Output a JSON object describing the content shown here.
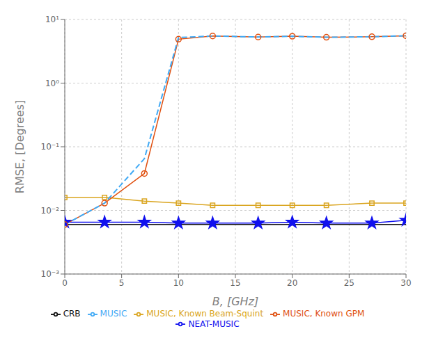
{
  "chart_data": {
    "type": "line",
    "x_label": "B, [GHz]",
    "y_label": "RMSE, [Degrees]",
    "log": "y",
    "grid": true,
    "legend": "bottom",
    "xlim": [
      0,
      30
    ],
    "xticks": [
      0,
      5,
      10,
      15,
      20,
      25,
      30
    ],
    "ylim": [
      0.001,
      10
    ],
    "yticks": [
      {
        "value": 0.001,
        "label": "10⁻³"
      },
      {
        "value": 0.01,
        "label": "10⁻²"
      },
      {
        "value": 0.1,
        "label": "10⁻¹"
      },
      {
        "value": 1,
        "label": "10⁰"
      },
      {
        "value": 10,
        "label": "10¹"
      }
    ],
    "series": [
      {
        "name": "CRB",
        "color": "#101010",
        "line_style": "solid",
        "marker": "none",
        "x": [
          0,
          30
        ],
        "values": [
          0.006,
          0.006
        ]
      },
      {
        "name": "NEAT-MUSIC",
        "color": "#1010EE",
        "line_style": "solid",
        "marker": "star",
        "x": [
          0,
          3.5,
          7,
          10,
          13,
          17,
          20,
          23,
          27,
          30
        ],
        "values": [
          0.0065,
          0.0065,
          0.0065,
          0.0063,
          0.0063,
          0.0063,
          0.0065,
          0.0063,
          0.0063,
          0.007
        ]
      },
      {
        "name": "MUSIC, Known Beam-Squint",
        "color": "#DAA520",
        "line_style": "solid",
        "marker": "square",
        "x": [
          0,
          3.5,
          7,
          10,
          13,
          17,
          20,
          23,
          27,
          30
        ],
        "values": [
          0.016,
          0.016,
          0.014,
          0.013,
          0.012,
          0.012,
          0.012,
          0.012,
          0.013,
          0.013
        ]
      },
      {
        "name": "MUSIC, Known GPM",
        "color": "#E05010",
        "line_style": "solid",
        "marker": "circle",
        "x": [
          0,
          3.5,
          7,
          10,
          13,
          17,
          20,
          23,
          27,
          30
        ],
        "values": [
          0.006,
          0.013,
          0.038,
          4.9,
          5.5,
          5.3,
          5.45,
          5.25,
          5.35,
          5.55
        ]
      },
      {
        "name": "MUSIC",
        "color": "#3FA9F5",
        "line_style": "dashed",
        "marker": "none",
        "x": [
          0,
          3.5,
          7,
          10,
          13,
          17,
          20,
          23,
          27,
          30
        ],
        "values": [
          0.006,
          0.013,
          0.065,
          5.2,
          5.5,
          5.3,
          5.45,
          5.25,
          5.35,
          5.55
        ]
      }
    ]
  }
}
